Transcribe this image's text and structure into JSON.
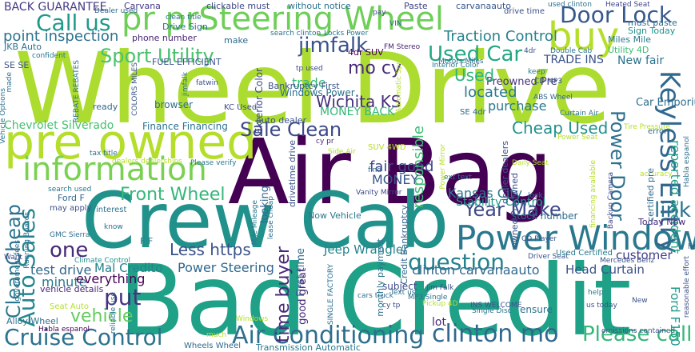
{
  "words": [
    {
      "text": "Wheel Drive",
      "color": "#addc30"
    },
    {
      "text": "Air Bag",
      "color": "#440154"
    },
    {
      "text": "Bad Credit",
      "color": "#1fa187"
    },
    {
      "text": "Crew Cab",
      "color": "#21918c"
    },
    {
      "text": "pre owned",
      "color": "#b5de2b"
    },
    {
      "text": "pr prSteering Wheel",
      "color": "#6ece58"
    },
    {
      "text": "Power Window",
      "color": "#2a788e"
    },
    {
      "text": "information",
      "color": "#7ad151"
    },
    {
      "text": "buy",
      "color": "#b5de2b"
    },
    {
      "text": "Keyless Entry",
      "color": "#31688e"
    },
    {
      "text": "Cruise Control",
      "color": "#2c728e"
    },
    {
      "text": "Air Conditioning",
      "color": "#2e6e8e"
    },
    {
      "text": "clinton mo",
      "color": "#31688e"
    },
    {
      "text": "Auto Sales",
      "color": "#25858e"
    },
    {
      "text": "Front Wheel",
      "color": "#35b779"
    },
    {
      "text": "question",
      "color": "#26828e"
    },
    {
      "text": "Sale Clean",
      "color": "#3e4a89"
    },
    {
      "text": "Call us",
      "color": "#1f998a"
    },
    {
      "text": "Door Lock",
      "color": "#38588c"
    },
    {
      "text": "Sport Utility",
      "color": "#4ac16d"
    },
    {
      "text": "jimfalk",
      "color": "#3b528b"
    },
    {
      "text": "Used Car",
      "color": "#22a884"
    },
    {
      "text": "Year Make",
      "color": "#3e4989"
    },
    {
      "text": "Power Door",
      "color": "#2d708e"
    },
    {
      "text": "Cheap Used",
      "color": "#21918c"
    },
    {
      "text": "Please call",
      "color": "#35b779"
    },
    {
      "text": "Cheap",
      "color": "#2c728e"
    },
    {
      "text": "Clean",
      "color": "#2a788e"
    },
    {
      "text": "vehicle",
      "color": "#65cb5e"
    },
    {
      "text": "put",
      "color": "#46337e"
    },
    {
      "text": "one",
      "color": "#482979"
    },
    {
      "text": "link",
      "color": "#2c728e"
    },
    {
      "text": "Less https",
      "color": "#3b528b"
    },
    {
      "text": "mo cy",
      "color": "#472c7a"
    },
    {
      "text": "fair good",
      "color": "#3e4a89"
    },
    {
      "text": "time buyer",
      "color": "#482979"
    },
    {
      "text": "Wichita KS",
      "color": "#472d7b"
    },
    {
      "text": "Power Steering",
      "color": "#31688e"
    },
    {
      "text": "point inspection",
      "color": "#2c728e"
    },
    {
      "text": "Traction Control",
      "color": "#26828e"
    },
    {
      "text": "Chevrolet Silverado",
      "color": "#46c06f"
    },
    {
      "text": "BACK GUARANTEE",
      "color": "#443983"
    },
    {
      "text": "MONEY BACK",
      "color": "#35b779"
    },
    {
      "text": "Kansas City",
      "color": "#2a788e"
    },
    {
      "text": "Jeep Wrangler",
      "color": "#25848e"
    },
    {
      "text": "Head Curtain",
      "color": "#3b528b"
    },
    {
      "text": "clinton carvanaauto",
      "color": "#31688e"
    },
    {
      "text": "test drive",
      "color": "#31688e"
    },
    {
      "text": "minute",
      "color": "#2a788e"
    },
    {
      "text": "everything",
      "color": "#440154"
    },
    {
      "text": "Mal Credito",
      "color": "#26828e"
    },
    {
      "text": "responsible",
      "color": "#3dbc74"
    },
    {
      "text": "Preowned Pre",
      "color": "#46337e"
    },
    {
      "text": "Finance Financing",
      "color": "#2c728e"
    },
    {
      "text": "Used",
      "color": "#2fb47c"
    },
    {
      "text": "located",
      "color": "#2a788e"
    },
    {
      "text": "purchase",
      "color": "#2a788e"
    },
    {
      "text": "trade",
      "color": "#35b779"
    },
    {
      "text": "MONEY",
      "color": "#38588c"
    },
    {
      "text": "TRADE INS",
      "color": "#3b528b"
    },
    {
      "text": "New fair",
      "color": "#2c728e"
    },
    {
      "text": "Car Emporium",
      "color": "#2e6e8e"
    },
    {
      "text": "Ford F150",
      "color": "#1f9a8a"
    },
    {
      "text": "reported accident",
      "color": "#1fa088"
    },
    {
      "text": "customer",
      "color": "#424086"
    },
    {
      "text": "Today Now",
      "color": "#472a7a"
    },
    {
      "text": "stock number",
      "color": "#2f6c8e"
    },
    {
      "text": "Carvana",
      "color": "#443983"
    },
    {
      "text": "clickable must",
      "color": "#3e4989"
    },
    {
      "text": "without notice",
      "color": "#2c728e"
    },
    {
      "text": "Paste",
      "color": "#414487"
    },
    {
      "text": "carvanaauto",
      "color": "#37598c"
    },
    {
      "text": "Heated Seat",
      "color": "#3e4989"
    },
    {
      "text": "Miles Mile",
      "color": "#2a788e"
    },
    {
      "text": "Utility 4D",
      "color": "#3dbc74"
    },
    {
      "text": "must paste",
      "color": "#2d708e"
    },
    {
      "text": "Sign Today",
      "color": "#21918c"
    },
    {
      "text": "FUEL EFFICIENT",
      "color": "#3b528b"
    },
    {
      "text": "JKB Auto",
      "color": "#2c728e"
    },
    {
      "text": "phone number",
      "color": "#482576"
    },
    {
      "text": "make",
      "color": "#2f6c8e"
    },
    {
      "text": "Drive Sign",
      "color": "#2d708e"
    },
    {
      "text": "browser",
      "color": "#2d708e"
    },
    {
      "text": "ready",
      "color": "#31688e"
    },
    {
      "text": "KC Used",
      "color": "#3e4989"
    },
    {
      "text": "Exterior Color",
      "color": "#3e4a89"
    },
    {
      "text": "Bankruptcy First",
      "color": "#3b528b"
    },
    {
      "text": "Windows Power",
      "color": "#2c728e"
    },
    {
      "text": "auto dealer",
      "color": "#3b528b"
    },
    {
      "text": "FM Stereo",
      "color": "#482475"
    },
    {
      "text": "4dr SUV",
      "color": "#440154"
    },
    {
      "text": "tp used",
      "color": "#3e4989"
    },
    {
      "text": "Dealer used",
      "color": "#31688e"
    },
    {
      "text": "SUV 4WD",
      "color": "#b5de2b"
    },
    {
      "text": "Side Air",
      "color": "#b5de2b"
    },
    {
      "text": "cy pr",
      "color": "#482979"
    },
    {
      "text": "Seat Auto",
      "color": "#b5de2b"
    },
    {
      "text": "Habla espanol",
      "color": "#440154"
    },
    {
      "text": "Wheels Wheel",
      "color": "#31688e"
    },
    {
      "text": "Transmission Automatic",
      "color": "#2a788e"
    },
    {
      "text": "omissions contained",
      "color": "#3b528b"
    },
    {
      "text": "Alloy Wheel",
      "color": "#2c728e"
    },
    {
      "text": "vehicle details",
      "color": "#482878"
    },
    {
      "text": "Climate Control",
      "color": "#21918c"
    },
    {
      "text": "Now Vehicle",
      "color": "#2a788e"
    },
    {
      "text": "Mercedes Benz",
      "color": "#3b528b"
    },
    {
      "text": "ensure",
      "color": "#2c728e"
    },
    {
      "text": "lot",
      "color": "#482979"
    },
    {
      "text": "subject",
      "color": "#3e4989"
    },
    {
      "text": "Jim Falk",
      "color": "#3b528b"
    },
    {
      "text": "Single Disc",
      "color": "#2c728e"
    },
    {
      "text": "Pickup 4D",
      "color": "#b5de2b"
    },
    {
      "text": "us today",
      "color": "#3b528b"
    },
    {
      "text": "Driver Seat",
      "color": "#3b528b"
    },
    {
      "text": "Used Certified",
      "color": "#2a788e"
    },
    {
      "text": "Stability Control",
      "color": "#1f998a"
    },
    {
      "text": "interest",
      "color": "#2c728e"
    },
    {
      "text": "know",
      "color": "#2d708e"
    },
    {
      "text": "may apply",
      "color": "#3b528b"
    },
    {
      "text": "search used",
      "color": "#2a788e"
    },
    {
      "text": "Ford F",
      "color": "#31688e"
    },
    {
      "text": "GMC Sierra",
      "color": "#2d708e"
    },
    {
      "text": "F F",
      "color": "#2a788e"
    },
    {
      "text": "Vanity Mirror",
      "color": "#3e4989"
    },
    {
      "text": "dealers dealerships",
      "color": "#b5de2b"
    },
    {
      "text": "Please verify",
      "color": "#2a788e"
    },
    {
      "text": "tax title",
      "color": "#2c728e"
    },
    {
      "text": "Tire Pressure",
      "color": "#b5de2b"
    },
    {
      "text": "Power Seat",
      "color": "#b5de2b"
    },
    {
      "text": "error",
      "color": "#31688e"
    },
    {
      "text": "accuracy",
      "color": "#b5de2b"
    },
    {
      "text": "ABS Wheel",
      "color": "#31688e"
    },
    {
      "text": "Curtain Air",
      "color": "#2c728e"
    },
    {
      "text": "CD MP3",
      "color": "#3b528b"
    },
    {
      "text": "CD Player",
      "color": "#3b528b"
    },
    {
      "text": "keep",
      "color": "#2a788e"
    },
    {
      "text": "look",
      "color": "#2c728e"
    },
    {
      "text": "ext text",
      "color": "#2c728e"
    },
    {
      "text": "find",
      "color": "#31688e"
    },
    {
      "text": "cars truck",
      "color": "#2c728e"
    },
    {
      "text": "cy tp",
      "color": "#3e4989"
    },
    {
      "text": "MP3 Single",
      "color": "#2d708e"
    },
    {
      "text": "help",
      "color": "#2a788e"
    },
    {
      "text": "New",
      "color": "#3b528b"
    },
    {
      "text": "much",
      "color": "#b5de2b"
    },
    {
      "text": "Windows",
      "color": "#b5de2b"
    },
    {
      "text": "Locks Power",
      "color": "#2a788e"
    },
    {
      "text": "search clinton",
      "color": "#2c728e"
    },
    {
      "text": "clean title",
      "color": "#2c728e"
    },
    {
      "text": "drive time",
      "color": "#3b528b"
    },
    {
      "text": "used clinton",
      "color": "#2c728e"
    },
    {
      "text": "VIN",
      "color": "#31688e"
    },
    {
      "text": "pay",
      "color": "#3e4989"
    },
    {
      "text": "Interior Color",
      "color": "#2a788e"
    },
    {
      "text": "Motors Miles",
      "color": "#31688e"
    },
    {
      "text": "Double Cab",
      "color": "#2c728e"
    },
    {
      "text": "fatwin",
      "color": "#3b528b"
    },
    {
      "text": "jimfalk",
      "color": "#2c728e"
    },
    {
      "text": "confident",
      "color": "#2a788e"
    },
    {
      "text": "SE SE",
      "color": "#3b528b"
    },
    {
      "text": "made",
      "color": "#2c728e"
    },
    {
      "text": "REBATE REBATES",
      "color": "#2c728e"
    },
    {
      "text": "COLORS MILES",
      "color": "#3b528b"
    },
    {
      "text": "SE 4dr",
      "color": "#31688e"
    },
    {
      "text": "Text us",
      "color": "#2c728e"
    },
    {
      "text": "Vehicle Options",
      "color": "#2c728e"
    },
    {
      "text": "Want",
      "color": "#3e4989"
    },
    {
      "text": "Running Boards",
      "color": "#2c728e"
    },
    {
      "text": "government fees",
      "color": "#2c728e"
    },
    {
      "text": "reliable use",
      "color": "#2c728e"
    },
    {
      "text": "Mile Mileage",
      "color": "#2a788e"
    },
    {
      "text": "lease cheap",
      "color": "#2c728e"
    },
    {
      "text": "First time",
      "color": "#31688e"
    },
    {
      "text": "good great",
      "color": "#482979"
    },
    {
      "text": "monthly payment",
      "color": "#2c728e"
    },
    {
      "text": "Credit Bankruptcy",
      "color": "#31688e"
    },
    {
      "text": "drivetime drive",
      "color": "#3b528b"
    },
    {
      "text": "looking",
      "color": "#31688e"
    },
    {
      "text": "dealer dealers",
      "color": "#3b528b"
    },
    {
      "text": "owned Preowned",
      "color": "#3b528b"
    },
    {
      "text": "financing available",
      "color": "#b5de2b"
    },
    {
      "text": "Backup Camera",
      "color": "#3e4989"
    },
    {
      "text": "certified pre",
      "color": "#31688e"
    },
    {
      "text": "reasonable effort",
      "color": "#3b528b"
    },
    {
      "text": "house",
      "color": "#3b528b"
    },
    {
      "text": "Automatic Spd",
      "color": "#b5de2b"
    },
    {
      "text": "4dr",
      "color": "#3b528b"
    },
    {
      "text": "SINGLE FACTORY",
      "color": "#2c728e"
    },
    {
      "text": "INS WELCOME",
      "color": "#3b528b"
    },
    {
      "text": "Habla espanol",
      "color": "#2c728e"
    },
    {
      "text": "Daily Seat",
      "color": "#b5de2b"
    },
    {
      "text": "Power Mirror",
      "color": "#b5de2b"
    }
  ]
}
